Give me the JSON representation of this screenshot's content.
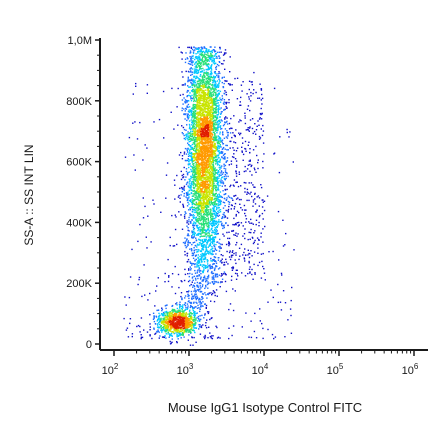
{
  "chart_data": {
    "type": "scatter",
    "subtype": "flow-cytometry density plot (pseudocolor)",
    "title": "",
    "xlabel": "Mouse IgG1 Isotype Control FITC",
    "ylabel": "SS-A :: SS INT LIN",
    "x_scale": "log",
    "y_scale": "linear",
    "xlim": [
      100,
      1000000
    ],
    "ylim": [
      -20000,
      1050000
    ],
    "x_ticks": [
      {
        "value": 100,
        "base": "10",
        "exp": "2"
      },
      {
        "value": 1000,
        "base": "10",
        "exp": "3"
      },
      {
        "value": 10000,
        "base": "10",
        "exp": "4"
      },
      {
        "value": 100000,
        "base": "10",
        "exp": "5"
      },
      {
        "value": 1000000,
        "base": "10",
        "exp": "6"
      }
    ],
    "y_ticks": [
      {
        "value": 0,
        "label": "0"
      },
      {
        "value": 200000,
        "label": "200K"
      },
      {
        "value": 400000,
        "label": "400K"
      },
      {
        "value": 600000,
        "label": "600K"
      },
      {
        "value": 800000,
        "label": "800K"
      },
      {
        "value": 1000000,
        "label": "1,0M"
      }
    ],
    "grid": false,
    "legend": "none",
    "color_scale": [
      "#1010c8",
      "#1e6eff",
      "#00c8ff",
      "#28e078",
      "#c8e400",
      "#ff9a00",
      "#e01e00"
    ],
    "populations": [
      {
        "description": "low-scatter cluster",
        "x_center": 700,
        "y_center": 75000,
        "x_spread_decades": 0.14,
        "y_spread": 35000,
        "share": 0.15
      },
      {
        "description": "main elongated cluster",
        "x_center": 1550,
        "x_spread_decades": 0.12,
        "y_range": [
          120000,
          980000
        ],
        "peak_y": 640000,
        "share": 0.7
      },
      {
        "description": "right-side scatter tail",
        "x_range": [
          2000,
          10000
        ],
        "y_range": [
          200000,
          880000
        ],
        "share": 0.1
      },
      {
        "description": "sparse background events",
        "x_range": [
          130,
          25000
        ],
        "y_range": [
          20000,
          900000
        ],
        "share": 0.05
      }
    ]
  }
}
